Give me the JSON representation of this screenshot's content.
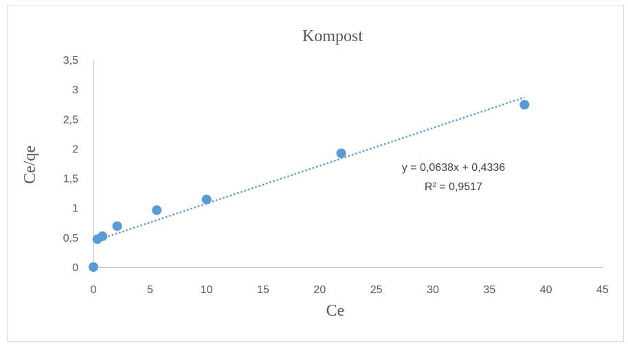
{
  "chart_data": {
    "type": "scatter",
    "title": "Kompost",
    "xlabel": "Ce",
    "ylabel": "Ce/qe",
    "xlim": [
      0,
      45
    ],
    "ylim": [
      0,
      3.5
    ],
    "x_ticks": [
      "0",
      "5",
      "10",
      "15",
      "20",
      "25",
      "30",
      "35",
      "40",
      "45"
    ],
    "y_ticks": [
      "0",
      "0,5",
      "1",
      "1,5",
      "2",
      "2,5",
      "3",
      "3,5"
    ],
    "grid": false,
    "series": [
      {
        "points": [
          {
            "x": 0.0,
            "y": 0.0
          },
          {
            "x": 0.35,
            "y": 0.47
          },
          {
            "x": 0.8,
            "y": 0.52
          },
          {
            "x": 2.1,
            "y": 0.69
          },
          {
            "x": 5.6,
            "y": 0.96
          },
          {
            "x": 10.0,
            "y": 1.14
          },
          {
            "x": 21.9,
            "y": 1.92
          },
          {
            "x": 38.1,
            "y": 2.74
          }
        ],
        "color": "#5b9bd5"
      }
    ],
    "trendline": {
      "type": "linear",
      "slope": 0.0638,
      "intercept": 0.4336,
      "x_range": [
        0.35,
        38.1
      ],
      "style": "dotted",
      "color": "#5b9bd5",
      "equation_label": "y = 0,0638x + 0,4336",
      "r2_label": "R² = 0,9517"
    }
  }
}
